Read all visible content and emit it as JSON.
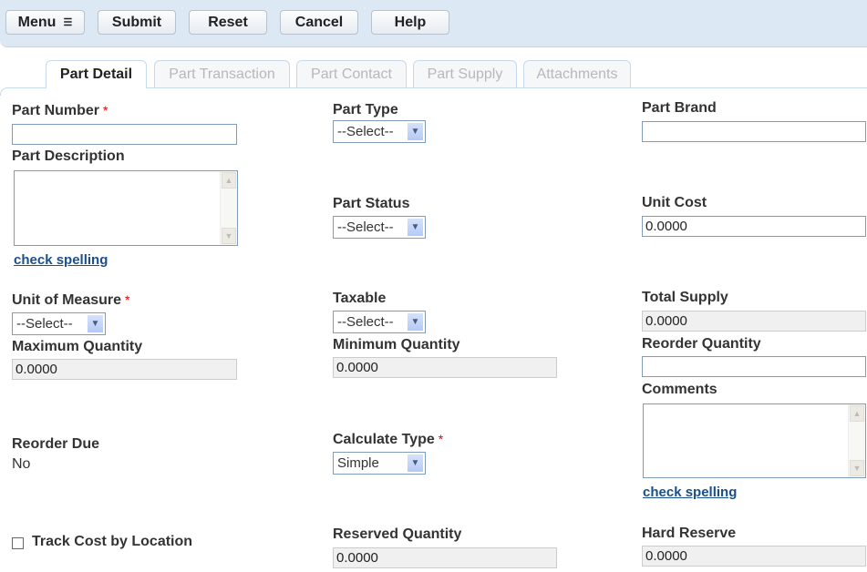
{
  "toolbar": {
    "menu": "Menu",
    "submit": "Submit",
    "reset": "Reset",
    "cancel": "Cancel",
    "help": "Help"
  },
  "tabs": [
    "Part Detail",
    "Part Transaction",
    "Part Contact",
    "Part Supply",
    "Attachments"
  ],
  "fields": {
    "part_number": {
      "label": "Part Number",
      "required": "*",
      "value": ""
    },
    "part_description": {
      "label": "Part Description",
      "value": "",
      "spell": "check spelling"
    },
    "unit_of_measure": {
      "label": "Unit of Measure",
      "required": "*",
      "value": "--Select--"
    },
    "maximum_quantity": {
      "label": "Maximum Quantity",
      "value": "0.0000"
    },
    "reorder_due": {
      "label": "Reorder Due",
      "value": "No"
    },
    "track_cost": {
      "label": "Track Cost by Location",
      "checked": false
    },
    "part_type": {
      "label": "Part Type",
      "value": "--Select--"
    },
    "part_status": {
      "label": "Part Status",
      "value": "--Select--"
    },
    "taxable": {
      "label": "Taxable",
      "value": "--Select--"
    },
    "minimum_quantity": {
      "label": "Minimum Quantity",
      "value": "0.0000"
    },
    "calculate_type": {
      "label": "Calculate Type",
      "required": "*",
      "value": "Simple"
    },
    "reserved_quantity": {
      "label": "Reserved Quantity",
      "value": "0.0000"
    },
    "part_brand": {
      "label": "Part Brand",
      "value": ""
    },
    "unit_cost": {
      "label": "Unit Cost",
      "value": "0.0000"
    },
    "total_supply": {
      "label": "Total Supply",
      "value": "0.0000"
    },
    "reorder_quantity": {
      "label": "Reorder Quantity",
      "value": ""
    },
    "comments": {
      "label": "Comments",
      "value": "",
      "spell": "check spelling"
    },
    "hard_reserve": {
      "label": "Hard Reserve",
      "value": "0.0000"
    }
  }
}
